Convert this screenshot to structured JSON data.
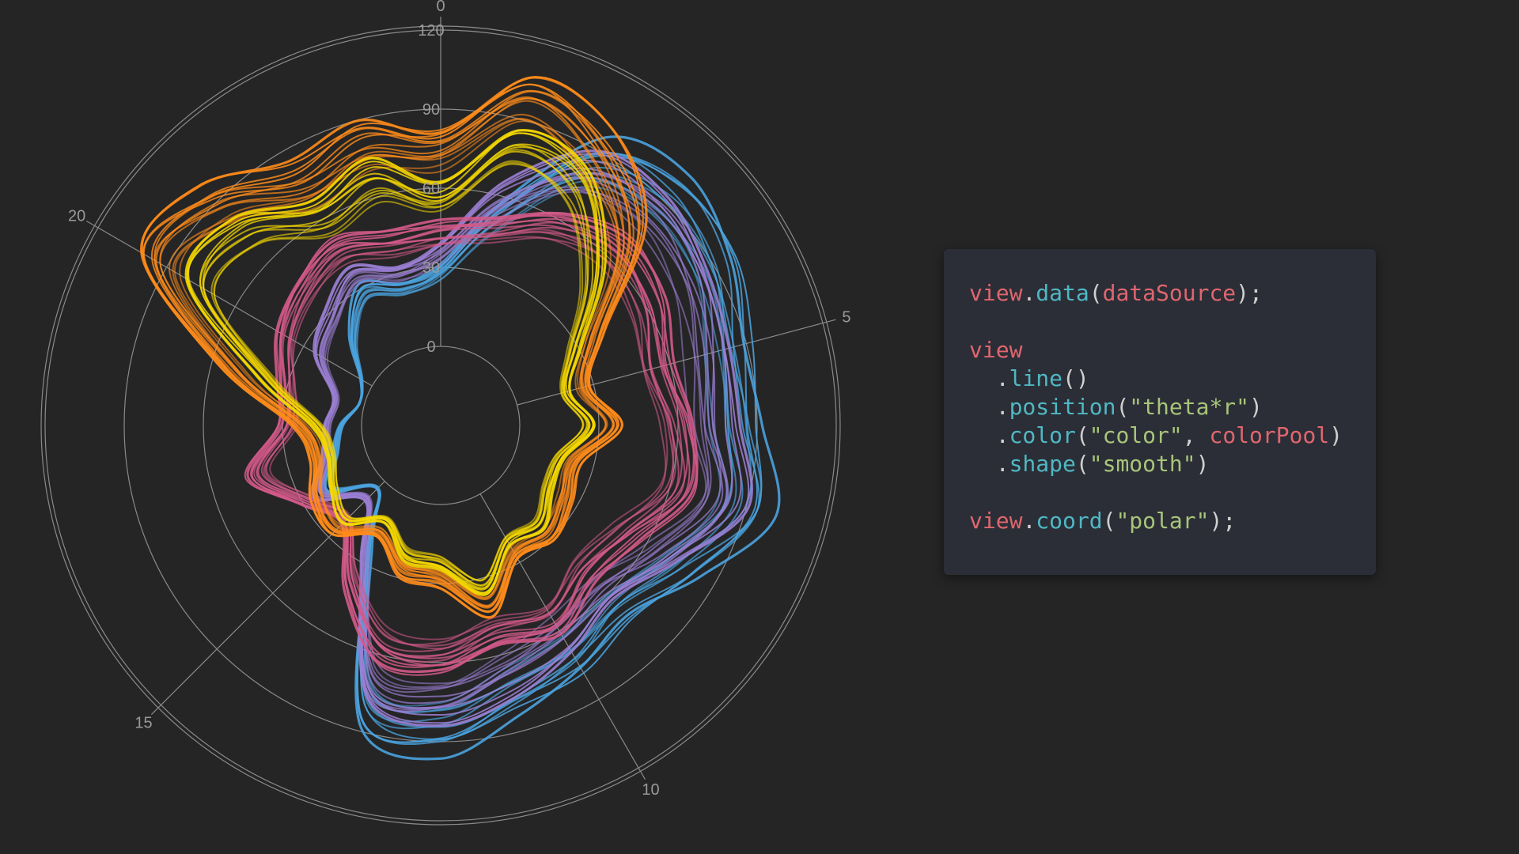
{
  "chart_data": {
    "type": "line",
    "coord": "polar",
    "shape": "smooth",
    "theta_ticks": [
      "0",
      "5",
      "10",
      "15",
      "20"
    ],
    "theta_range": [
      0,
      24
    ],
    "r_ticks": [
      "0",
      "30",
      "60",
      "90",
      "120"
    ],
    "r_range": [
      0,
      120
    ],
    "grid": true,
    "colors": [
      "#4aa3df",
      "#9b7fd4",
      "#d45a8a",
      "#ff8c1a",
      "#f5d800"
    ],
    "series": [
      {
        "color": "#4aa3df",
        "count": 12,
        "values": [
          30,
          55,
          90,
          98,
          95,
          88,
          88,
          95,
          80,
          70,
          75,
          80,
          90,
          84,
          25,
          4,
          20,
          12,
          8,
          2,
          5,
          18,
          30,
          25
        ]
      },
      {
        "color": "#9b7fd4",
        "count": 12,
        "values": [
          38,
          62,
          85,
          90,
          86,
          80,
          78,
          86,
          72,
          62,
          66,
          72,
          80,
          76,
          30,
          10,
          24,
          16,
          14,
          12,
          24,
          30,
          38,
          32
        ]
      },
      {
        "color": "#d45a8a",
        "count": 14,
        "values": [
          45,
          50,
          62,
          68,
          64,
          58,
          64,
          68,
          55,
          50,
          58,
          55,
          62,
          60,
          40,
          22,
          30,
          45,
          30,
          32,
          40,
          46,
          50,
          44
        ]
      },
      {
        "color": "#ff8c1a",
        "count": 14,
        "values": [
          80,
          105,
          95,
          75,
          40,
          28,
          38,
          24,
          26,
          30,
          28,
          44,
          30,
          28,
          18,
          28,
          26,
          20,
          25,
          55,
          100,
          95,
          80,
          85
        ]
      },
      {
        "color": "#f5d800",
        "count": 12,
        "values": [
          60,
          85,
          80,
          55,
          30,
          20,
          28,
          18,
          18,
          24,
          22,
          36,
          24,
          22,
          12,
          22,
          18,
          14,
          18,
          40,
          80,
          80,
          65,
          70
        ]
      }
    ]
  },
  "code": {
    "line1": {
      "a": "view",
      "b": ".",
      "c": "data",
      "d": "(",
      "e": "dataSource",
      "f": ");"
    },
    "line2": {
      "a": "view"
    },
    "line3": {
      "a": "  .",
      "b": "line",
      "c": "()"
    },
    "line4": {
      "a": "  .",
      "b": "position",
      "c": "(",
      "d": "\"theta*r\"",
      "e": ")"
    },
    "line5": {
      "a": "  .",
      "b": "color",
      "c": "(",
      "d": "\"color\"",
      "e": ", ",
      "f": "colorPool",
      "g": ")"
    },
    "line6": {
      "a": "  .",
      "b": "shape",
      "c": "(",
      "d": "\"smooth\"",
      "e": ")"
    },
    "line7": {
      "a": "view",
      "b": ".",
      "c": "coord",
      "d": "(",
      "e": "\"polar\"",
      "f": ");"
    }
  }
}
